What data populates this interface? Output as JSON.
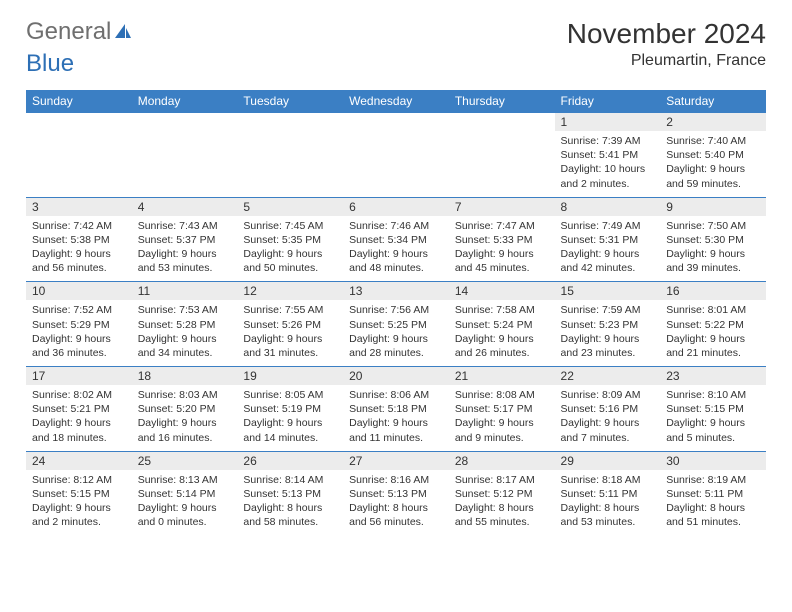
{
  "logo": {
    "part1": "General",
    "part2": "Blue"
  },
  "title": "November 2024",
  "location": "Pleumartin, France",
  "day_headers": [
    "Sunday",
    "Monday",
    "Tuesday",
    "Wednesday",
    "Thursday",
    "Friday",
    "Saturday"
  ],
  "colors": {
    "header_bg": "#3b7fc4",
    "header_text": "#ffffff",
    "daynum_bg": "#ececec",
    "border": "#3b7fc4",
    "logo_gray": "#6f6f6f",
    "logo_blue": "#2d6fb5",
    "text": "#333333",
    "page_bg": "#ffffff"
  },
  "typography": {
    "title_fontsize": 28,
    "location_fontsize": 16,
    "header_fontsize": 12,
    "daynum_fontsize": 12,
    "cell_fontsize": 10.5
  },
  "weeks": [
    [
      {
        "num": "",
        "sunrise": "",
        "sunset": "",
        "daylight": ""
      },
      {
        "num": "",
        "sunrise": "",
        "sunset": "",
        "daylight": ""
      },
      {
        "num": "",
        "sunrise": "",
        "sunset": "",
        "daylight": ""
      },
      {
        "num": "",
        "sunrise": "",
        "sunset": "",
        "daylight": ""
      },
      {
        "num": "",
        "sunrise": "",
        "sunset": "",
        "daylight": ""
      },
      {
        "num": "1",
        "sunrise": "Sunrise: 7:39 AM",
        "sunset": "Sunset: 5:41 PM",
        "daylight": "Daylight: 10 hours and 2 minutes."
      },
      {
        "num": "2",
        "sunrise": "Sunrise: 7:40 AM",
        "sunset": "Sunset: 5:40 PM",
        "daylight": "Daylight: 9 hours and 59 minutes."
      }
    ],
    [
      {
        "num": "3",
        "sunrise": "Sunrise: 7:42 AM",
        "sunset": "Sunset: 5:38 PM",
        "daylight": "Daylight: 9 hours and 56 minutes."
      },
      {
        "num": "4",
        "sunrise": "Sunrise: 7:43 AM",
        "sunset": "Sunset: 5:37 PM",
        "daylight": "Daylight: 9 hours and 53 minutes."
      },
      {
        "num": "5",
        "sunrise": "Sunrise: 7:45 AM",
        "sunset": "Sunset: 5:35 PM",
        "daylight": "Daylight: 9 hours and 50 minutes."
      },
      {
        "num": "6",
        "sunrise": "Sunrise: 7:46 AM",
        "sunset": "Sunset: 5:34 PM",
        "daylight": "Daylight: 9 hours and 48 minutes."
      },
      {
        "num": "7",
        "sunrise": "Sunrise: 7:47 AM",
        "sunset": "Sunset: 5:33 PM",
        "daylight": "Daylight: 9 hours and 45 minutes."
      },
      {
        "num": "8",
        "sunrise": "Sunrise: 7:49 AM",
        "sunset": "Sunset: 5:31 PM",
        "daylight": "Daylight: 9 hours and 42 minutes."
      },
      {
        "num": "9",
        "sunrise": "Sunrise: 7:50 AM",
        "sunset": "Sunset: 5:30 PM",
        "daylight": "Daylight: 9 hours and 39 minutes."
      }
    ],
    [
      {
        "num": "10",
        "sunrise": "Sunrise: 7:52 AM",
        "sunset": "Sunset: 5:29 PM",
        "daylight": "Daylight: 9 hours and 36 minutes."
      },
      {
        "num": "11",
        "sunrise": "Sunrise: 7:53 AM",
        "sunset": "Sunset: 5:28 PM",
        "daylight": "Daylight: 9 hours and 34 minutes."
      },
      {
        "num": "12",
        "sunrise": "Sunrise: 7:55 AM",
        "sunset": "Sunset: 5:26 PM",
        "daylight": "Daylight: 9 hours and 31 minutes."
      },
      {
        "num": "13",
        "sunrise": "Sunrise: 7:56 AM",
        "sunset": "Sunset: 5:25 PM",
        "daylight": "Daylight: 9 hours and 28 minutes."
      },
      {
        "num": "14",
        "sunrise": "Sunrise: 7:58 AM",
        "sunset": "Sunset: 5:24 PM",
        "daylight": "Daylight: 9 hours and 26 minutes."
      },
      {
        "num": "15",
        "sunrise": "Sunrise: 7:59 AM",
        "sunset": "Sunset: 5:23 PM",
        "daylight": "Daylight: 9 hours and 23 minutes."
      },
      {
        "num": "16",
        "sunrise": "Sunrise: 8:01 AM",
        "sunset": "Sunset: 5:22 PM",
        "daylight": "Daylight: 9 hours and 21 minutes."
      }
    ],
    [
      {
        "num": "17",
        "sunrise": "Sunrise: 8:02 AM",
        "sunset": "Sunset: 5:21 PM",
        "daylight": "Daylight: 9 hours and 18 minutes."
      },
      {
        "num": "18",
        "sunrise": "Sunrise: 8:03 AM",
        "sunset": "Sunset: 5:20 PM",
        "daylight": "Daylight: 9 hours and 16 minutes."
      },
      {
        "num": "19",
        "sunrise": "Sunrise: 8:05 AM",
        "sunset": "Sunset: 5:19 PM",
        "daylight": "Daylight: 9 hours and 14 minutes."
      },
      {
        "num": "20",
        "sunrise": "Sunrise: 8:06 AM",
        "sunset": "Sunset: 5:18 PM",
        "daylight": "Daylight: 9 hours and 11 minutes."
      },
      {
        "num": "21",
        "sunrise": "Sunrise: 8:08 AM",
        "sunset": "Sunset: 5:17 PM",
        "daylight": "Daylight: 9 hours and 9 minutes."
      },
      {
        "num": "22",
        "sunrise": "Sunrise: 8:09 AM",
        "sunset": "Sunset: 5:16 PM",
        "daylight": "Daylight: 9 hours and 7 minutes."
      },
      {
        "num": "23",
        "sunrise": "Sunrise: 8:10 AM",
        "sunset": "Sunset: 5:15 PM",
        "daylight": "Daylight: 9 hours and 5 minutes."
      }
    ],
    [
      {
        "num": "24",
        "sunrise": "Sunrise: 8:12 AM",
        "sunset": "Sunset: 5:15 PM",
        "daylight": "Daylight: 9 hours and 2 minutes."
      },
      {
        "num": "25",
        "sunrise": "Sunrise: 8:13 AM",
        "sunset": "Sunset: 5:14 PM",
        "daylight": "Daylight: 9 hours and 0 minutes."
      },
      {
        "num": "26",
        "sunrise": "Sunrise: 8:14 AM",
        "sunset": "Sunset: 5:13 PM",
        "daylight": "Daylight: 8 hours and 58 minutes."
      },
      {
        "num": "27",
        "sunrise": "Sunrise: 8:16 AM",
        "sunset": "Sunset: 5:13 PM",
        "daylight": "Daylight: 8 hours and 56 minutes."
      },
      {
        "num": "28",
        "sunrise": "Sunrise: 8:17 AM",
        "sunset": "Sunset: 5:12 PM",
        "daylight": "Daylight: 8 hours and 55 minutes."
      },
      {
        "num": "29",
        "sunrise": "Sunrise: 8:18 AM",
        "sunset": "Sunset: 5:11 PM",
        "daylight": "Daylight: 8 hours and 53 minutes."
      },
      {
        "num": "30",
        "sunrise": "Sunrise: 8:19 AM",
        "sunset": "Sunset: 5:11 PM",
        "daylight": "Daylight: 8 hours and 51 minutes."
      }
    ]
  ]
}
